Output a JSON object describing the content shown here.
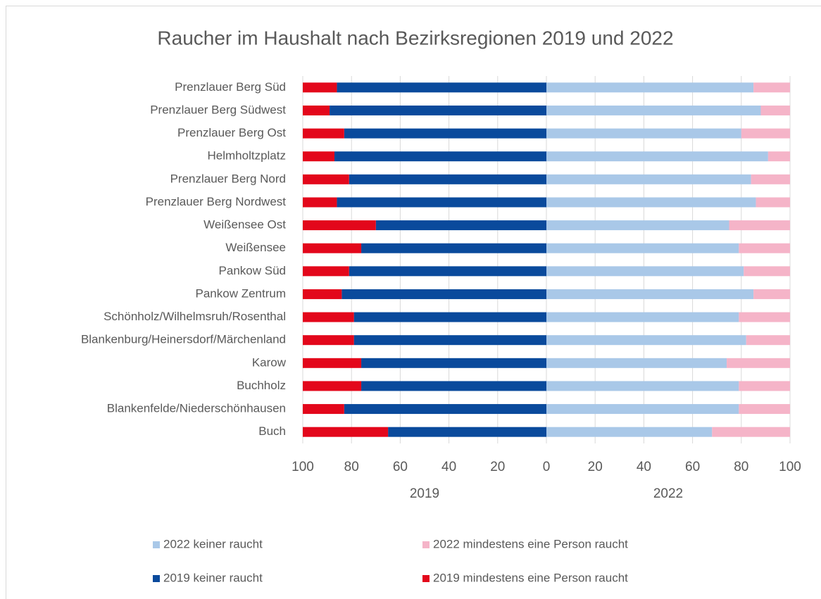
{
  "chart_data": {
    "type": "butterfly_stacked_bar",
    "title": "Raucher im Haushalt nach Bezirksregionen 2019 und 2022",
    "categories": [
      "Prenzlauer Berg Süd",
      "Prenzlauer Berg Südwest",
      "Prenzlauer Berg Ost",
      "Helmholtzplatz",
      "Prenzlauer Berg Nord",
      "Prenzlauer Berg Nordwest",
      "Weißensee Ost",
      "Weißensee",
      "Pankow Süd",
      "Pankow Zentrum",
      "Schönholz/Wilhelmsruh/Rosenthal",
      "Blankenburg/Heinersdorf/Märchenland",
      "Karow",
      "Buchholz",
      "Blankenfelde/Niederschönhausen",
      "Buch"
    ],
    "panels": [
      {
        "label": "2019",
        "xlim": [
          100,
          0
        ],
        "xticks": [
          100,
          80,
          60,
          40,
          20
        ]
      },
      {
        "label": "2022",
        "xlim": [
          0,
          100
        ],
        "xticks": [
          0,
          20,
          40,
          60,
          80,
          100
        ]
      }
    ],
    "series": [
      {
        "name": "2022 keiner raucht",
        "color": "#a9c8e8",
        "panel": 1,
        "values": [
          85,
          88,
          80,
          91,
          84,
          86,
          75,
          79,
          81,
          85,
          79,
          82,
          74,
          79,
          79,
          68
        ]
      },
      {
        "name": "2022 mindestens eine Person raucht",
        "color": "#f5b4c8",
        "panel": 1,
        "values": [
          15,
          12,
          20,
          9,
          16,
          14,
          25,
          21,
          19,
          15,
          21,
          18,
          26,
          21,
          21,
          32
        ]
      },
      {
        "name": "2019 keiner raucht",
        "color": "#0a4a9c",
        "panel": 0,
        "values": [
          86,
          89,
          83,
          87,
          81,
          86,
          70,
          76,
          81,
          84,
          79,
          79,
          76,
          76,
          83,
          65
        ]
      },
      {
        "name": "2019 mindestens eine Person raucht",
        "color": "#e3071b",
        "panel": 0,
        "values": [
          14,
          11,
          17,
          13,
          19,
          14,
          30,
          24,
          19,
          16,
          21,
          21,
          24,
          24,
          17,
          35
        ]
      }
    ],
    "grid": true
  }
}
